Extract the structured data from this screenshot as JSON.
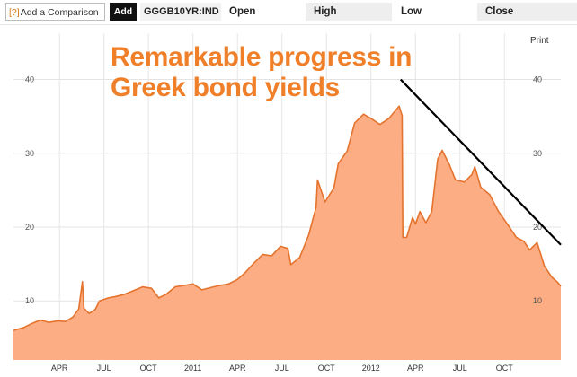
{
  "toolbar": {
    "compare_icon": "[?]",
    "compare_label": "Add a Comparison",
    "add_label": "Add",
    "ticker": "GGGB10YR:IND",
    "open_label": "Open",
    "high_label": "High",
    "low_label": "Low",
    "close_label": "Close"
  },
  "print_label": "Print",
  "headline": [
    "Remarkable progress in",
    "Greek bond yields"
  ],
  "colors": {
    "area_fill": "#fcad83",
    "area_line": "#e4732e",
    "headline": "#f07f2a",
    "trend_line": "#000000"
  },
  "chart_data": {
    "type": "area",
    "title": "Remarkable progress in Greek bond yields",
    "xlabel": "",
    "ylabel": "",
    "y_ticks": [
      10,
      20,
      30,
      40
    ],
    "y_tick_labels": [
      "10",
      "20",
      "30",
      "40"
    ],
    "ylim": [
      2,
      47
    ],
    "x_tick_labels": [
      "APR",
      "JUL",
      "OCT",
      "2011",
      "APR",
      "JUL",
      "OCT",
      "2012",
      "APR",
      "JUL",
      "OCT"
    ],
    "x_ticks": [
      3,
      6,
      9,
      12,
      15,
      18,
      21,
      24,
      27,
      30,
      33
    ],
    "xlim": [
      -0.1,
      36.8
    ],
    "grid": true,
    "series": [
      {
        "values": [
          [
            -0.1,
            6.0
          ],
          [
            0.6,
            6.4
          ],
          [
            1.1,
            6.9
          ],
          [
            1.7,
            7.4
          ],
          [
            2.3,
            7.1
          ],
          [
            2.9,
            7.3
          ],
          [
            3.4,
            7.2
          ],
          [
            3.9,
            7.8
          ],
          [
            4.3,
            8.9
          ],
          [
            4.55,
            12.6
          ],
          [
            4.65,
            9.0
          ],
          [
            5.0,
            8.3
          ],
          [
            5.4,
            8.8
          ],
          [
            5.7,
            10.0
          ],
          [
            6.3,
            10.4
          ],
          [
            6.8,
            10.6
          ],
          [
            7.4,
            10.9
          ],
          [
            8.0,
            11.4
          ],
          [
            8.6,
            11.9
          ],
          [
            9.2,
            11.7
          ],
          [
            9.7,
            10.4
          ],
          [
            10.2,
            10.9
          ],
          [
            10.8,
            11.9
          ],
          [
            11.4,
            12.1
          ],
          [
            12.0,
            12.3
          ],
          [
            12.6,
            11.5
          ],
          [
            13.2,
            11.8
          ],
          [
            13.8,
            12.1
          ],
          [
            14.4,
            12.3
          ],
          [
            15.0,
            12.9
          ],
          [
            15.5,
            13.8
          ],
          [
            16.1,
            15.1
          ],
          [
            16.7,
            16.3
          ],
          [
            17.3,
            16.1
          ],
          [
            17.9,
            17.4
          ],
          [
            18.4,
            17.1
          ],
          [
            18.6,
            14.9
          ],
          [
            19.2,
            15.9
          ],
          [
            19.8,
            18.9
          ],
          [
            20.3,
            22.7
          ],
          [
            20.4,
            26.4
          ],
          [
            20.9,
            23.4
          ],
          [
            21.5,
            25.3
          ],
          [
            21.8,
            28.6
          ],
          [
            22.4,
            30.3
          ],
          [
            22.9,
            34.1
          ],
          [
            23.5,
            35.3
          ],
          [
            24.1,
            34.6
          ],
          [
            24.6,
            33.9
          ],
          [
            25.2,
            34.7
          ],
          [
            25.9,
            36.4
          ],
          [
            26.1,
            35.1
          ],
          [
            26.15,
            18.6
          ],
          [
            26.4,
            18.6
          ],
          [
            26.8,
            21.3
          ],
          [
            27.0,
            20.4
          ],
          [
            27.3,
            22.1
          ],
          [
            27.7,
            20.6
          ],
          [
            28.1,
            22.1
          ],
          [
            28.5,
            29.2
          ],
          [
            28.8,
            30.4
          ],
          [
            29.3,
            28.4
          ],
          [
            29.7,
            26.4
          ],
          [
            30.3,
            26.1
          ],
          [
            30.8,
            27.1
          ],
          [
            31.0,
            28.2
          ],
          [
            31.4,
            25.4
          ],
          [
            32.0,
            24.4
          ],
          [
            32.6,
            22.1
          ],
          [
            33.2,
            20.4
          ],
          [
            33.8,
            18.6
          ],
          [
            34.3,
            18.1
          ],
          [
            34.7,
            16.9
          ],
          [
            35.2,
            17.9
          ],
          [
            35.7,
            14.7
          ],
          [
            36.2,
            13.2
          ],
          [
            36.6,
            12.5
          ],
          [
            36.8,
            12.0
          ]
        ]
      }
    ],
    "trend_line": {
      "from": [
        26.0,
        40.0
      ],
      "to": [
        36.8,
        17.6
      ]
    }
  }
}
